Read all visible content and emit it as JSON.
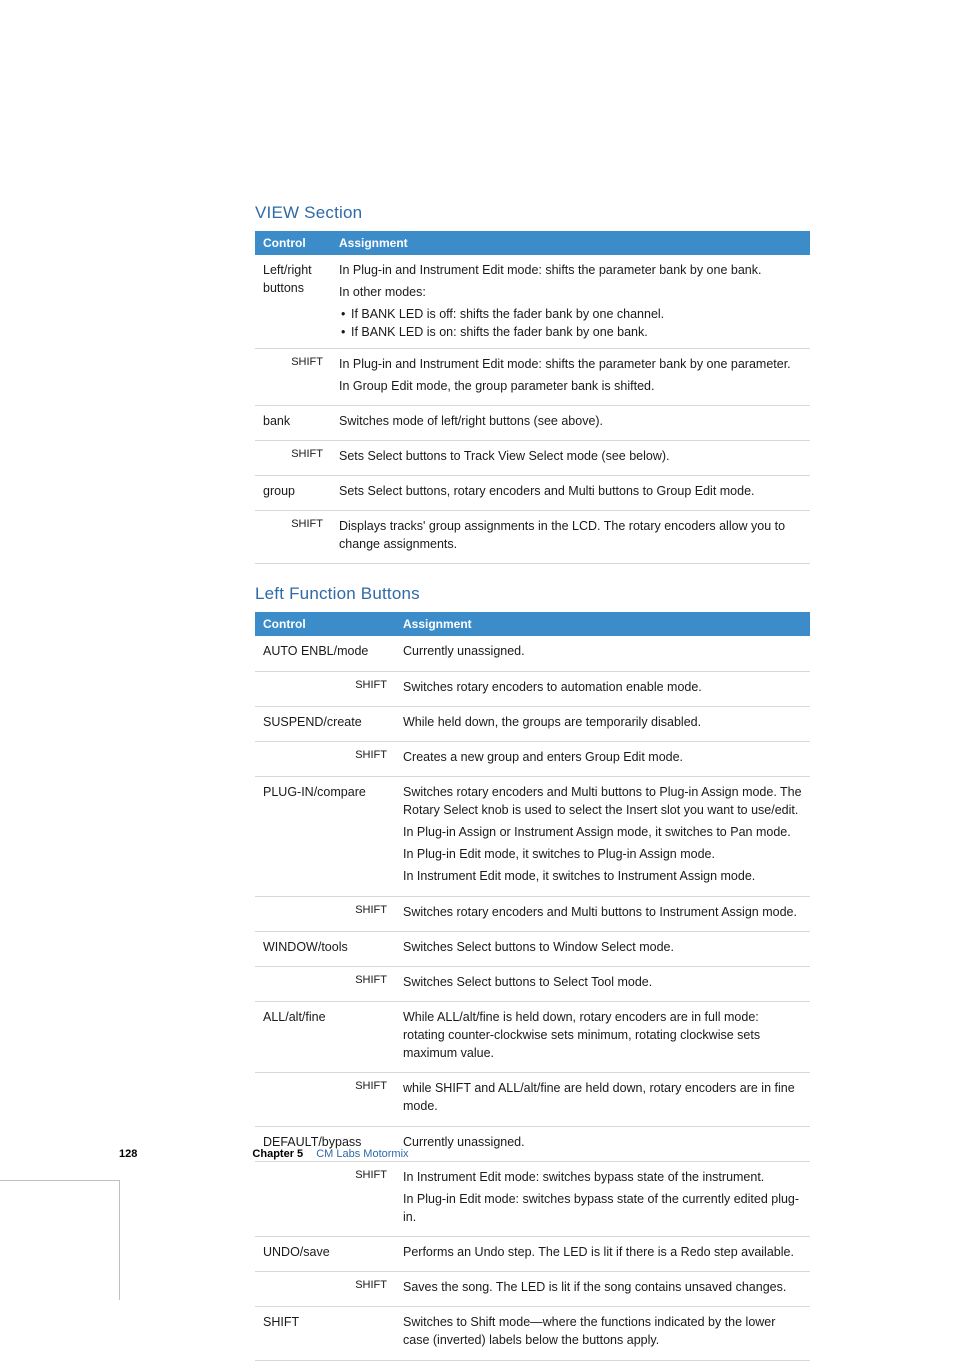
{
  "view_section": {
    "title": "VIEW Section",
    "headers": {
      "control": "Control",
      "assignment": "Assignment"
    },
    "rows": [
      {
        "control": "Left/right buttons",
        "shift": "",
        "assignment_lines": [
          "In Plug-in and Instrument Edit mode:  shifts the parameter bank by one bank.",
          "In other modes:"
        ],
        "bullets": [
          "If BANK LED is off:  shifts the fader bank by one channel.",
          "If BANK LED is on:  shifts the fader bank by one bank."
        ]
      },
      {
        "control": "",
        "shift": "SHIFT",
        "assignment_lines": [
          "In Plug-in and Instrument Edit mode:  shifts the parameter bank by one parameter.",
          "In Group Edit mode, the group parameter bank is shifted."
        ]
      },
      {
        "control": "bank",
        "shift": "",
        "assignment_lines": [
          "Switches mode of left/right buttons (see above)."
        ]
      },
      {
        "control": "",
        "shift": "SHIFT",
        "assignment_lines": [
          "Sets Select buttons to Track View Select mode (see below)."
        ]
      },
      {
        "control": "group",
        "shift": "",
        "assignment_lines": [
          "Sets Select buttons, rotary encoders and Multi buttons to Group Edit mode."
        ]
      },
      {
        "control": "",
        "shift": "SHIFT",
        "assignment_lines": [
          "Displays tracks' group assignments in the LCD. The rotary encoders allow you to change assignments."
        ]
      }
    ]
  },
  "left_section": {
    "title": "Left Function Buttons",
    "headers": {
      "control": "Control",
      "assignment": "Assignment"
    },
    "rows": [
      {
        "control": "AUTO ENBL/mode",
        "shift": "",
        "assignment_lines": [
          "Currently unassigned."
        ]
      },
      {
        "control": "",
        "shift": "SHIFT",
        "assignment_lines": [
          "Switches rotary encoders to automation enable mode."
        ]
      },
      {
        "control": "SUSPEND/create",
        "shift": "",
        "assignment_lines": [
          "While held down, the groups are temporarily disabled."
        ]
      },
      {
        "control": "",
        "shift": "SHIFT",
        "assignment_lines": [
          "Creates a new group and enters Group Edit mode."
        ]
      },
      {
        "control": "PLUG-IN/compare",
        "shift": "",
        "assignment_lines": [
          "Switches rotary encoders and Multi buttons to Plug-in Assign mode. The Rotary Select knob is used to select the Insert slot you want to use/edit.",
          "In Plug-in Assign or Instrument Assign mode, it switches to Pan mode.",
          "In Plug-in Edit mode, it switches to Plug-in Assign mode.",
          "In Instrument Edit mode, it switches to Instrument Assign mode."
        ]
      },
      {
        "control": "",
        "shift": "SHIFT",
        "assignment_lines": [
          "Switches rotary encoders and Multi buttons to Instrument Assign mode."
        ]
      },
      {
        "control": "WINDOW/tools",
        "shift": "",
        "assignment_lines": [
          "Switches Select buttons to Window Select mode."
        ]
      },
      {
        "control": "",
        "shift": "SHIFT",
        "assignment_lines": [
          "Switches Select buttons to Select Tool mode."
        ]
      },
      {
        "control": "ALL/alt/fine",
        "shift": "",
        "assignment_lines": [
          "While ALL/alt/fine is held down, rotary encoders are in full mode:  rotating counter-clockwise sets minimum, rotating clockwise sets maximum value."
        ]
      },
      {
        "control": "",
        "shift": "SHIFT",
        "assignment_lines": [
          "while SHIFT and ALL/alt/fine are held down, rotary encoders are in fine mode."
        ]
      },
      {
        "control": "DEFAULT/bypass",
        "shift": "",
        "assignment_lines": [
          "Currently unassigned."
        ]
      },
      {
        "control": "",
        "shift": "SHIFT",
        "assignment_lines": [
          "In Instrument Edit mode:  switches bypass state of the instrument.",
          "In Plug-in Edit mode:  switches bypass state of the currently edited plug-in."
        ]
      },
      {
        "control": "UNDO/save",
        "shift": "",
        "assignment_lines": [
          "Performs an Undo step. The LED is lit if there is a Redo step available."
        ]
      },
      {
        "control": "",
        "shift": "SHIFT",
        "assignment_lines": [
          "Saves the song. The LED is lit if the song contains unsaved changes."
        ]
      },
      {
        "control": "SHIFT",
        "shift": "",
        "assignment_lines": [
          "Switches to Shift mode—where the functions indicated by the lower case (inverted) labels below the buttons apply."
        ]
      }
    ]
  },
  "footer": {
    "page_number": "128",
    "chapter_label": "Chapter 5",
    "chapter_name": "CM Labs Motormix"
  },
  "colors": {
    "heading": "#2f6aa8",
    "header_bg": "#3c8cca",
    "header_fg": "#ffffff",
    "text": "#1a1a1a",
    "rule": "#d8d8d8"
  }
}
